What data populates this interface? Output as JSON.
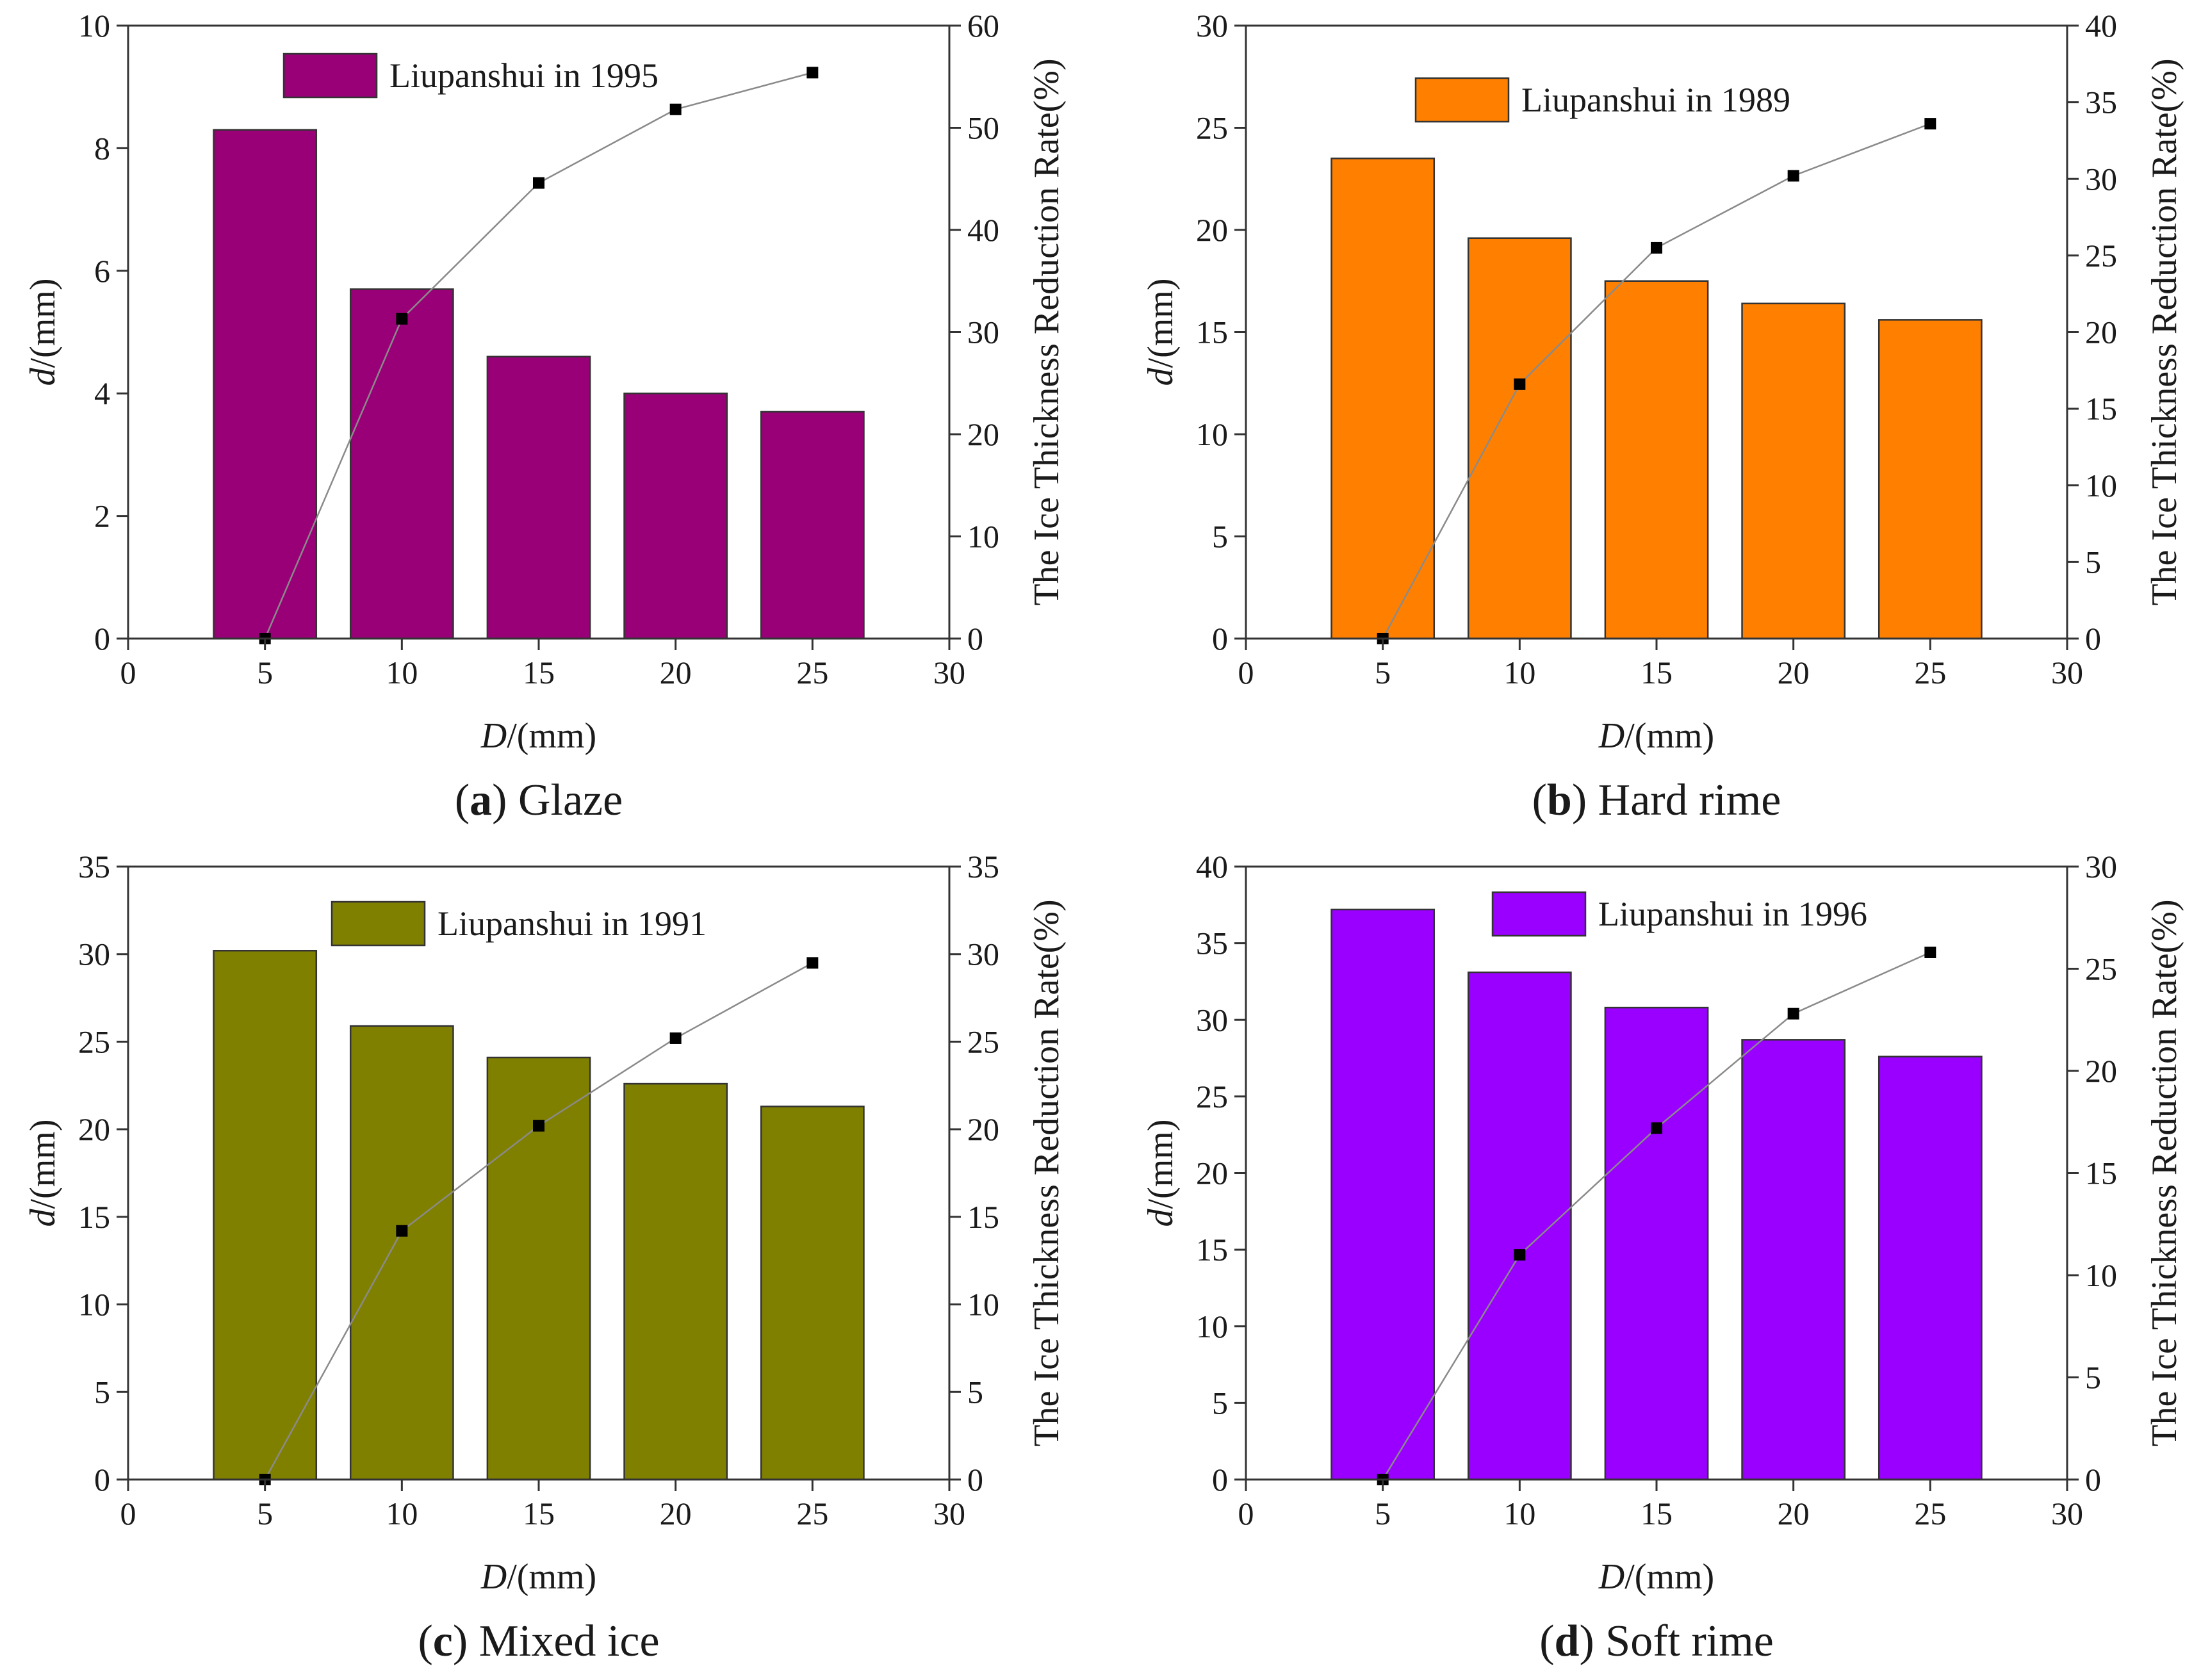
{
  "chart_data": [
    {
      "type": "bar",
      "panel": "a",
      "caption_letter": "a",
      "caption_text": ") Glaze",
      "legend": "Liupanshui in 1995",
      "bar_color": "#990077",
      "x": [
        5,
        10,
        15,
        20,
        25
      ],
      "values": [
        8.3,
        5.7,
        4.6,
        4.0,
        3.7
      ],
      "rate": [
        0,
        31.3,
        44.6,
        51.8,
        55.4
      ],
      "xlim": [
        0,
        30
      ],
      "xticks": [
        0,
        5,
        10,
        15,
        20,
        25,
        30
      ],
      "ylim": [
        0,
        10
      ],
      "yticks": [
        0,
        2,
        4,
        6,
        8,
        10
      ],
      "y2lim": [
        0,
        60
      ],
      "y2ticks": [
        0,
        10,
        20,
        30,
        40,
        50,
        60
      ],
      "xlabel_italic": "D",
      "xlabel_unit": "/(mm)",
      "ylabel_italic": "d",
      "ylabel_unit": "/(mm)",
      "y2label": "The Ice Thickness Reduction Rate(%)"
    },
    {
      "type": "bar",
      "panel": "b",
      "caption_letter": "b",
      "caption_text": ") Hard rime",
      "legend": "Liupanshui in 1989",
      "bar_color": "#ff8000",
      "x": [
        5,
        10,
        15,
        20,
        25
      ],
      "values": [
        23.5,
        19.6,
        17.5,
        16.4,
        15.6
      ],
      "rate": [
        0,
        16.6,
        25.5,
        30.2,
        33.6
      ],
      "xlim": [
        0,
        30
      ],
      "xticks": [
        0,
        5,
        10,
        15,
        20,
        25,
        30
      ],
      "ylim": [
        0,
        30
      ],
      "yticks": [
        0,
        5,
        10,
        15,
        20,
        25,
        30
      ],
      "y2lim": [
        0,
        40
      ],
      "y2ticks": [
        0,
        5,
        10,
        15,
        20,
        25,
        30,
        35,
        40
      ],
      "xlabel_italic": "D",
      "xlabel_unit": "/(mm)",
      "ylabel_italic": "d",
      "ylabel_unit": "/(mm)",
      "y2label": "The Ice Thickness Reduction Rate(%)"
    },
    {
      "type": "bar",
      "panel": "c",
      "caption_letter": "c",
      "caption_text": ") Mixed ice",
      "legend": "Liupanshui in 1991",
      "bar_color": "#808000",
      "x": [
        5,
        10,
        15,
        20,
        25
      ],
      "values": [
        30.2,
        25.9,
        24.1,
        22.6,
        21.3
      ],
      "rate": [
        0,
        14.2,
        20.2,
        25.2,
        29.5
      ],
      "xlim": [
        0,
        30
      ],
      "xticks": [
        0,
        5,
        10,
        15,
        20,
        25,
        30
      ],
      "ylim": [
        0,
        35
      ],
      "yticks": [
        0,
        5,
        10,
        15,
        20,
        25,
        30,
        35
      ],
      "y2lim": [
        0,
        35
      ],
      "y2ticks": [
        0,
        5,
        10,
        15,
        20,
        25,
        30,
        35
      ],
      "xlabel_italic": "D",
      "xlabel_unit": "/(mm)",
      "ylabel_italic": "d",
      "ylabel_unit": "/(mm)",
      "y2label": "The Ice Thickness Reduction Rate(%)"
    },
    {
      "type": "bar",
      "panel": "d",
      "caption_letter": "d",
      "caption_text": ") Soft rime",
      "legend": "Liupanshui in 1996",
      "bar_color": "#9900ff",
      "x": [
        5,
        10,
        15,
        20,
        25
      ],
      "values": [
        37.2,
        33.1,
        30.8,
        28.7,
        27.6
      ],
      "rate": [
        0,
        11.0,
        17.2,
        22.8,
        25.8
      ],
      "xlim": [
        0,
        30
      ],
      "xticks": [
        0,
        5,
        10,
        15,
        20,
        25,
        30
      ],
      "ylim": [
        0,
        40
      ],
      "yticks": [
        0,
        5,
        10,
        15,
        20,
        25,
        30,
        35,
        40
      ],
      "y2lim": [
        0,
        30
      ],
      "y2ticks": [
        0,
        5,
        10,
        15,
        20,
        25,
        30
      ],
      "xlabel_italic": "D",
      "xlabel_unit": "/(mm)",
      "ylabel_italic": "d",
      "ylabel_unit": "/(mm)",
      "y2label": "The Ice Thickness Reduction Rate(%)"
    }
  ]
}
